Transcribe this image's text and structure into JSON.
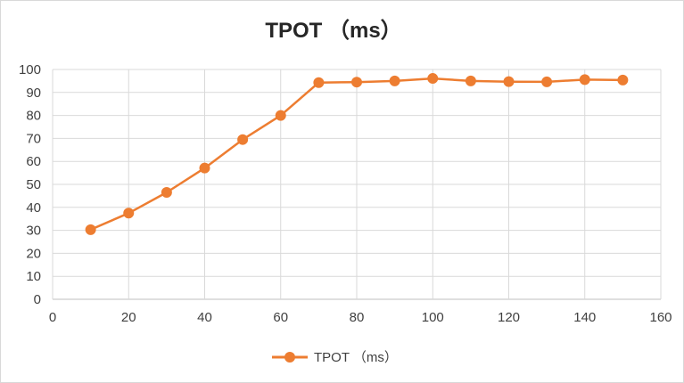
{
  "chart_data": {
    "type": "line",
    "title": "TPOT （ms）",
    "xlabel": "",
    "ylabel": "",
    "xlim": [
      0,
      160
    ],
    "ylim": [
      0,
      100
    ],
    "x_ticks": [
      0,
      20,
      40,
      60,
      80,
      100,
      120,
      140,
      160
    ],
    "y_ticks": [
      0,
      10,
      20,
      30,
      40,
      50,
      60,
      70,
      80,
      90,
      100
    ],
    "grid": true,
    "legend_position": "bottom",
    "series": [
      {
        "name": "TPOT （ms）",
        "color": "#ed7d31",
        "x": [
          10,
          20,
          30,
          40,
          50,
          60,
          70,
          80,
          90,
          100,
          110,
          120,
          130,
          140,
          150
        ],
        "y": [
          30.3,
          37.5,
          46.5,
          57.1,
          69.5,
          80.0,
          94.3,
          94.5,
          95.0,
          96.1,
          95.0,
          94.7,
          94.6,
          95.6,
          95.4
        ]
      }
    ]
  }
}
